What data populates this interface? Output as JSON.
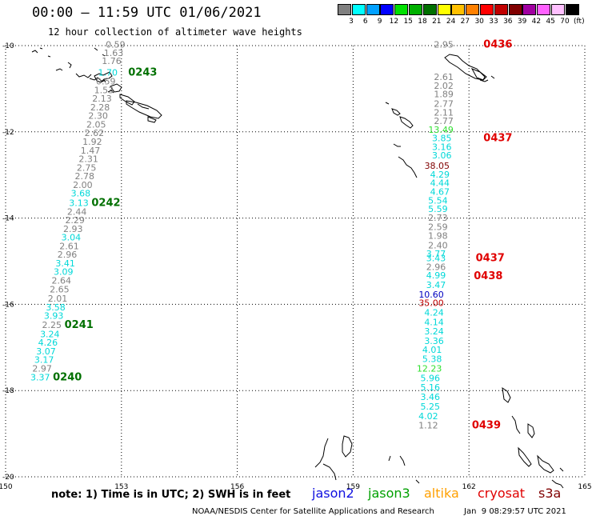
{
  "title": "00:00 — 11:59 UTC 01/06/2021",
  "subtitle": "12 hour collection of altimeter wave heights",
  "legend": {
    "unit": "(ft)",
    "entries": [
      {
        "color": "#808080",
        "label": "3"
      },
      {
        "color": "#00ffff",
        "label": "6"
      },
      {
        "color": "#00a0ff",
        "label": "9"
      },
      {
        "color": "#0000ff",
        "label": "12"
      },
      {
        "color": "#00e000",
        "label": "15"
      },
      {
        "color": "#00b000",
        "label": "18"
      },
      {
        "color": "#007000",
        "label": "21"
      },
      {
        "color": "#ffff00",
        "label": "24"
      },
      {
        "color": "#ffc000",
        "label": "27"
      },
      {
        "color": "#ff8000",
        "label": "30"
      },
      {
        "color": "#ff0000",
        "label": "33"
      },
      {
        "color": "#c00000",
        "label": "36"
      },
      {
        "color": "#800000",
        "label": "39"
      },
      {
        "color": "#a000a0",
        "label": "42"
      },
      {
        "color": "#ff60ff",
        "label": "45"
      },
      {
        "color": "#ffc0ff",
        "label": "70"
      },
      {
        "color": "#000000",
        "label": ""
      }
    ]
  },
  "chart_data": {
    "type": "scatter",
    "xlim": [
      150,
      165
    ],
    "ylim": [
      -20,
      -10
    ],
    "x_ticks": [
      "150",
      "153",
      "156",
      "159",
      "162",
      "165"
    ],
    "y_ticks": [
      "-10",
      "-12",
      "-14",
      "-16",
      "-18",
      "-20"
    ],
    "grid": true,
    "tracks": [
      {
        "points": [
          {
            "lon": 153.1,
            "lat": -10.05,
            "v": "0.59",
            "c": "#808080"
          },
          {
            "lon": 153.05,
            "lat": -10.24,
            "v": "1.63",
            "c": "#808080"
          },
          {
            "lon": 153.0,
            "lat": -10.43,
            "v": "1.76",
            "c": "#808080"
          },
          {
            "lon": 152.9,
            "lat": -10.7,
            "v": "1.70",
            "c": "#00d8d8"
          },
          {
            "lon": 152.85,
            "lat": -10.9,
            "v": "0.59",
            "c": "#808080"
          },
          {
            "lon": 152.8,
            "lat": -11.1,
            "v": "1.53",
            "c": "#808080"
          },
          {
            "lon": 152.75,
            "lat": -11.3,
            "v": "2.13",
            "c": "#808080"
          },
          {
            "lon": 152.7,
            "lat": -11.5,
            "v": "2.28",
            "c": "#808080"
          },
          {
            "lon": 152.65,
            "lat": -11.7,
            "v": "2.30",
            "c": "#808080"
          },
          {
            "lon": 152.6,
            "lat": -11.9,
            "v": "2.05",
            "c": "#808080"
          },
          {
            "lon": 152.55,
            "lat": -12.1,
            "v": "2.62",
            "c": "#808080"
          },
          {
            "lon": 152.5,
            "lat": -12.3,
            "v": "1.92",
            "c": "#808080"
          },
          {
            "lon": 152.45,
            "lat": -12.5,
            "v": "1.47",
            "c": "#808080"
          },
          {
            "lon": 152.4,
            "lat": -12.7,
            "v": "2.31",
            "c": "#808080"
          },
          {
            "lon": 152.35,
            "lat": -12.9,
            "v": "2.75",
            "c": "#808080"
          },
          {
            "lon": 152.3,
            "lat": -13.1,
            "v": "2.78",
            "c": "#808080"
          },
          {
            "lon": 152.25,
            "lat": -13.3,
            "v": "2.00",
            "c": "#808080"
          },
          {
            "lon": 152.2,
            "lat": -13.5,
            "v": "3.68",
            "c": "#00d8d8"
          },
          {
            "lon": 152.15,
            "lat": -13.72,
            "v": "3.13",
            "c": "#00d8d8"
          },
          {
            "lon": 152.1,
            "lat": -13.92,
            "v": "2.44",
            "c": "#808080"
          },
          {
            "lon": 152.05,
            "lat": -14.12,
            "v": "2.29",
            "c": "#808080"
          },
          {
            "lon": 152.0,
            "lat": -14.32,
            "v": "2.93",
            "c": "#808080"
          },
          {
            "lon": 151.95,
            "lat": -14.52,
            "v": "3.04",
            "c": "#00d8d8"
          },
          {
            "lon": 151.9,
            "lat": -14.72,
            "v": "2.61",
            "c": "#808080"
          },
          {
            "lon": 151.85,
            "lat": -14.92,
            "v": "2.96",
            "c": "#808080"
          },
          {
            "lon": 151.8,
            "lat": -15.12,
            "v": "3.41",
            "c": "#00d8d8"
          },
          {
            "lon": 151.75,
            "lat": -15.32,
            "v": "3.09",
            "c": "#00d8d8"
          },
          {
            "lon": 151.7,
            "lat": -15.52,
            "v": "2.64",
            "c": "#808080"
          },
          {
            "lon": 151.65,
            "lat": -15.72,
            "v": "2.65",
            "c": "#808080"
          },
          {
            "lon": 151.6,
            "lat": -15.94,
            "v": "2.01",
            "c": "#808080"
          },
          {
            "lon": 151.55,
            "lat": -16.14,
            "v": "3.58",
            "c": "#00d8d8"
          },
          {
            "lon": 151.5,
            "lat": -16.34,
            "v": "3.93",
            "c": "#00d8d8"
          },
          {
            "lon": 151.45,
            "lat": -16.55,
            "v": "2.25",
            "c": "#808080"
          },
          {
            "lon": 151.4,
            "lat": -16.76,
            "v": "3.24",
            "c": "#00d8d8"
          },
          {
            "lon": 151.35,
            "lat": -16.96,
            "v": "4.26",
            "c": "#00d8d8"
          },
          {
            "lon": 151.3,
            "lat": -17.16,
            "v": "3.07",
            "c": "#00d8d8"
          },
          {
            "lon": 151.25,
            "lat": -17.36,
            "v": "3.17",
            "c": "#00d8d8"
          },
          {
            "lon": 151.2,
            "lat": -17.56,
            "v": "2.97",
            "c": "#808080"
          },
          {
            "lon": 151.15,
            "lat": -17.76,
            "v": "3.37",
            "c": "#00d8d8"
          }
        ],
        "times": [
          {
            "lon": 153.55,
            "lat": -10.7,
            "v": "0243"
          },
          {
            "lon": 152.6,
            "lat": -13.72,
            "v": "0242"
          },
          {
            "lon": 151.9,
            "lat": -16.55,
            "v": "0241"
          },
          {
            "lon": 151.6,
            "lat": -17.76,
            "v": "0240"
          }
        ]
      },
      {
        "points": [
          {
            "lon": 161.6,
            "lat": -10.05,
            "v": "2.95",
            "c": "#808080"
          },
          {
            "lon": 161.6,
            "lat": -10.8,
            "v": "2.61",
            "c": "#808080"
          },
          {
            "lon": 161.6,
            "lat": -11.0,
            "v": "2.02",
            "c": "#808080"
          },
          {
            "lon": 161.6,
            "lat": -11.2,
            "v": "1.89",
            "c": "#808080"
          },
          {
            "lon": 161.6,
            "lat": -11.42,
            "v": "2.77",
            "c": "#808080"
          },
          {
            "lon": 161.6,
            "lat": -11.62,
            "v": "2.11",
            "c": "#808080"
          },
          {
            "lon": 161.6,
            "lat": -11.82,
            "v": "2.77",
            "c": "#808080"
          },
          {
            "lon": 161.6,
            "lat": -12.02,
            "v": "13.49",
            "c": "#30e030"
          },
          {
            "lon": 161.55,
            "lat": -12.22,
            "v": "3.85",
            "c": "#00d8d8"
          },
          {
            "lon": 161.55,
            "lat": -12.42,
            "v": "3.16",
            "c": "#00d8d8"
          },
          {
            "lon": 161.55,
            "lat": -12.62,
            "v": "3.06",
            "c": "#00d8d8"
          },
          {
            "lon": 161.5,
            "lat": -12.86,
            "v": "38.05",
            "c": "#800000"
          },
          {
            "lon": 161.5,
            "lat": -13.06,
            "v": "4.29",
            "c": "#00d8d8"
          },
          {
            "lon": 161.5,
            "lat": -13.26,
            "v": "4.44",
            "c": "#00d8d8"
          },
          {
            "lon": 161.5,
            "lat": -13.46,
            "v": "4.67",
            "c": "#00d8d8"
          },
          {
            "lon": 161.45,
            "lat": -13.66,
            "v": "5.54",
            "c": "#00d8d8"
          },
          {
            "lon": 161.45,
            "lat": -13.86,
            "v": "5.59",
            "c": "#00d8d8"
          },
          {
            "lon": 161.45,
            "lat": -14.06,
            "v": "2.73",
            "c": "#808080"
          },
          {
            "lon": 161.45,
            "lat": -14.28,
            "v": "2.59",
            "c": "#808080"
          },
          {
            "lon": 161.45,
            "lat": -14.48,
            "v": "1.98",
            "c": "#808080"
          },
          {
            "lon": 161.45,
            "lat": -14.7,
            "v": "2.40",
            "c": "#808080"
          },
          {
            "lon": 161.4,
            "lat": -14.9,
            "v": "3.77",
            "c": "#00d8d8"
          },
          {
            "lon": 161.4,
            "lat": -15.0,
            "v": "3.43",
            "c": "#00d8d8"
          },
          {
            "lon": 161.4,
            "lat": -15.2,
            "v": "2.96",
            "c": "#808080"
          },
          {
            "lon": 161.4,
            "lat": -15.4,
            "v": "4.99",
            "c": "#00d8d8"
          },
          {
            "lon": 161.4,
            "lat": -15.62,
            "v": "3.47",
            "c": "#00d8d8"
          },
          {
            "lon": 161.35,
            "lat": -15.84,
            "v": "10.60",
            "c": "#0000c0"
          },
          {
            "lon": 161.35,
            "lat": -16.04,
            "v": "35.00",
            "c": "#c00000"
          },
          {
            "lon": 161.35,
            "lat": -16.26,
            "v": "4.24",
            "c": "#00d8d8"
          },
          {
            "lon": 161.35,
            "lat": -16.48,
            "v": "4.14",
            "c": "#00d8d8"
          },
          {
            "lon": 161.35,
            "lat": -16.7,
            "v": "3.24",
            "c": "#00d8d8"
          },
          {
            "lon": 161.35,
            "lat": -16.92,
            "v": "3.36",
            "c": "#00d8d8"
          },
          {
            "lon": 161.3,
            "lat": -17.12,
            "v": "4.01",
            "c": "#00d8d8"
          },
          {
            "lon": 161.3,
            "lat": -17.34,
            "v": "5.38",
            "c": "#00d8d8"
          },
          {
            "lon": 161.3,
            "lat": -17.56,
            "v": "12.23",
            "c": "#30e030"
          },
          {
            "lon": 161.25,
            "lat": -17.78,
            "v": "5.96",
            "c": "#00d8d8"
          },
          {
            "lon": 161.25,
            "lat": -18.0,
            "v": "5.16",
            "c": "#00d8d8"
          },
          {
            "lon": 161.25,
            "lat": -18.22,
            "v": "3.46",
            "c": "#00d8d8"
          },
          {
            "lon": 161.25,
            "lat": -18.44,
            "v": "5.25",
            "c": "#00d8d8"
          },
          {
            "lon": 161.2,
            "lat": -18.66,
            "v": "4.02",
            "c": "#00d8d8"
          },
          {
            "lon": 161.2,
            "lat": -18.88,
            "v": "1.12",
            "c": "#808080"
          }
        ],
        "times": [
          {
            "lon": 162.75,
            "lat": -10.05,
            "v": "0436",
            "c": "#e00000"
          },
          {
            "lon": 162.75,
            "lat": -12.22,
            "v": "0437",
            "c": "#e00000"
          },
          {
            "lon": 162.55,
            "lat": -15.0,
            "v": "0437",
            "c": "#e00000"
          },
          {
            "lon": 162.5,
            "lat": -15.42,
            "v": "0438",
            "c": "#e00000"
          },
          {
            "lon": 162.45,
            "lat": -18.88,
            "v": "0439",
            "c": "#e00000"
          }
        ]
      }
    ]
  },
  "note": "note: 1) Time is in UTC; 2) SWH is in feet",
  "satellites": [
    {
      "name": "jason2",
      "color": "#1010e0"
    },
    {
      "name": "jason3",
      "color": "#00a000"
    },
    {
      "name": "altika",
      "color": "#ffa000"
    },
    {
      "name": "cryosat",
      "color": "#e00000"
    },
    {
      "name": "s3a",
      "color": "#800000"
    }
  ],
  "credit": "NOAA/NESDIS Center for Satellite Applications and Research",
  "stamp": "Jan  9 08:29:57 UTC 2021"
}
